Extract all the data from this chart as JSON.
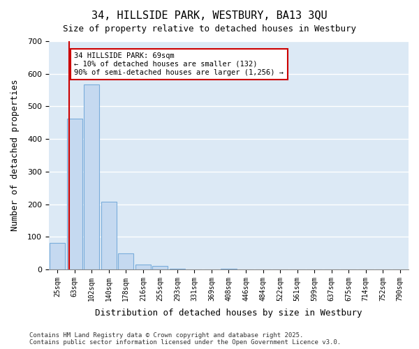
{
  "title": "34, HILLSIDE PARK, WESTBURY, BA13 3QU",
  "subtitle": "Size of property relative to detached houses in Westbury",
  "xlabel": "Distribution of detached houses by size in Westbury",
  "ylabel": "Number of detached properties",
  "bar_color": "#c5d9f0",
  "bar_edge_color": "#7aaddb",
  "background_color": "#dce9f5",
  "grid_color": "#ffffff",
  "categories": [
    "25sqm",
    "63sqm",
    "102sqm",
    "140sqm",
    "178sqm",
    "216sqm",
    "255sqm",
    "293sqm",
    "331sqm",
    "369sqm",
    "408sqm",
    "446sqm",
    "484sqm",
    "522sqm",
    "561sqm",
    "599sqm",
    "637sqm",
    "675sqm",
    "714sqm",
    "752sqm",
    "790sqm"
  ],
  "values": [
    82,
    462,
    567,
    208,
    50,
    15,
    10,
    1,
    0,
    0,
    1,
    0,
    0,
    0,
    0,
    0,
    0,
    0,
    0,
    0,
    0
  ],
  "ylim": [
    0,
    700
  ],
  "yticks": [
    0,
    100,
    200,
    300,
    400,
    500,
    600,
    700
  ],
  "property_line_x": 0.72,
  "property_line_color": "#cc0000",
  "annotation_text": "34 HILLSIDE PARK: 69sqm\n← 10% of detached houses are smaller (132)\n90% of semi-detached houses are larger (1,256) →",
  "annotation_box_color": "#ffffff",
  "annotation_box_edge_color": "#cc0000",
  "footer_text": "Contains HM Land Registry data © Crown copyright and database right 2025.\nContains public sector information licensed under the Open Government Licence v3.0.",
  "figsize": [
    6.0,
    5.0
  ],
  "dpi": 100
}
